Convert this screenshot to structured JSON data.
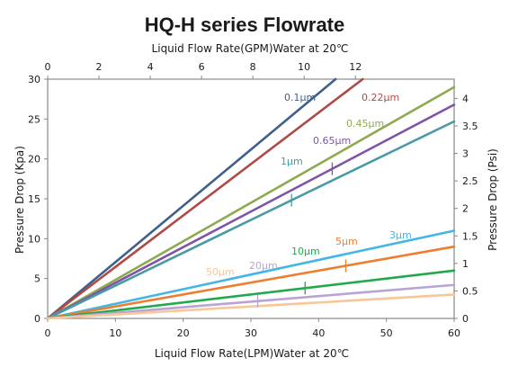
{
  "chart_data": {
    "type": "line",
    "title": "HQ-H series  Flowrate",
    "xlabel": "Liquid  Flow Rate(LPM)Water  at  20℃",
    "ylabel": "Pressure Drop  (Kpa)",
    "x_top_label": "Liquid  Flow Rate(GPM)Water  at  20℃",
    "y_right_label": "Pressure Drop  (Psi)",
    "xlim": [
      0,
      60
    ],
    "ylim": [
      0,
      30
    ],
    "x_top_lim": [
      0,
      15.85
    ],
    "y_right_lim": [
      0,
      4.35
    ],
    "x_ticks": [
      "0",
      "10",
      "20",
      "30",
      "40",
      "50",
      "60"
    ],
    "y_ticks": [
      "0",
      "5",
      "10",
      "15",
      "20",
      "25",
      "30"
    ],
    "x_top_ticks": [
      "0",
      "2",
      "4",
      "6",
      "8",
      "10",
      "12"
    ],
    "y_right_ticks": [
      "0",
      "0.5",
      "1",
      "1.5",
      "2",
      "2.5",
      "3",
      "3.5",
      "4"
    ],
    "grid": false,
    "series": [
      {
        "name": "0.1μm",
        "color": "#3f5f8f",
        "x": [
          0,
          42.5
        ],
        "y": [
          0,
          30
        ]
      },
      {
        "name": "0.22μm",
        "color": "#b04a45",
        "x": [
          0,
          46.5
        ],
        "y": [
          0,
          30
        ]
      },
      {
        "name": "0.45μm",
        "color": "#8ea94f",
        "x": [
          0,
          60
        ],
        "y": [
          0,
          29.0
        ]
      },
      {
        "name": "0.65μm",
        "color": "#7f54a8",
        "x": [
          0,
          60
        ],
        "y": [
          0,
          26.8
        ]
      },
      {
        "name": "1μm",
        "color": "#4a9aa6",
        "x": [
          0,
          60
        ],
        "y": [
          0,
          24.7
        ]
      },
      {
        "name": "3μm",
        "color": "#43b6e5",
        "x": [
          0,
          60
        ],
        "y": [
          0,
          11.0
        ]
      },
      {
        "name": "5μm",
        "color": "#ee7d2f",
        "x": [
          0,
          60
        ],
        "y": [
          0,
          9.0
        ]
      },
      {
        "name": "10μm",
        "color": "#22a94c",
        "x": [
          0,
          60
        ],
        "y": [
          0,
          6.0
        ]
      },
      {
        "name": "20μm",
        "color": "#b8a4d4",
        "x": [
          0,
          60
        ],
        "y": [
          0,
          4.2
        ]
      },
      {
        "name": "50μm",
        "color": "#f8c69a",
        "x": [
          0,
          60
        ],
        "y": [
          0,
          3.0
        ]
      }
    ]
  }
}
